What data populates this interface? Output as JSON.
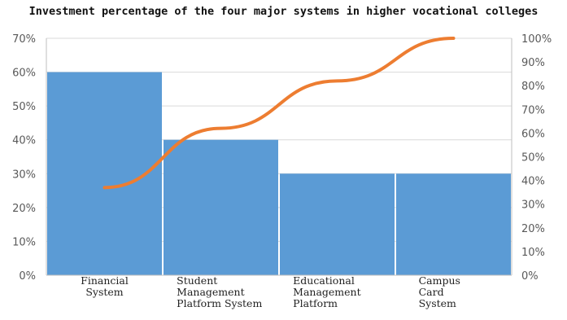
{
  "chart_data": {
    "type": "bar",
    "title": "Investment percentage of the four major systems in higher vocational colleges",
    "categories": [
      [
        "Financial",
        "System"
      ],
      [
        "Student",
        "Management",
        "Platform System"
      ],
      [
        "Educational",
        "Management",
        "Platform"
      ],
      [
        "Campus",
        "Card",
        "System"
      ]
    ],
    "series": [
      {
        "type": "bar",
        "axis": "left",
        "values": [
          60,
          40,
          30,
          30
        ]
      },
      {
        "type": "line",
        "axis": "right",
        "values": [
          37,
          62,
          82,
          100
        ]
      }
    ],
    "y_left": {
      "ticks": [
        "0%",
        "10%",
        "20%",
        "30%",
        "40%",
        "50%",
        "60%",
        "70%"
      ],
      "ylim": [
        0,
        70
      ]
    },
    "y_right": {
      "ticks": [
        "0%",
        "10%",
        "20%",
        "30%",
        "40%",
        "50%",
        "60%",
        "70%",
        "80%",
        "90%",
        "100%"
      ],
      "ylim": [
        0,
        100
      ]
    },
    "xlabel": "",
    "ylabel": "",
    "grid": true,
    "legend": "none",
    "colors": {
      "bar": "#5b9bd5",
      "line": "#ed7d31",
      "grid": "#d9d9d9",
      "axis": "#bfbfbf",
      "tick": "#595959"
    }
  }
}
